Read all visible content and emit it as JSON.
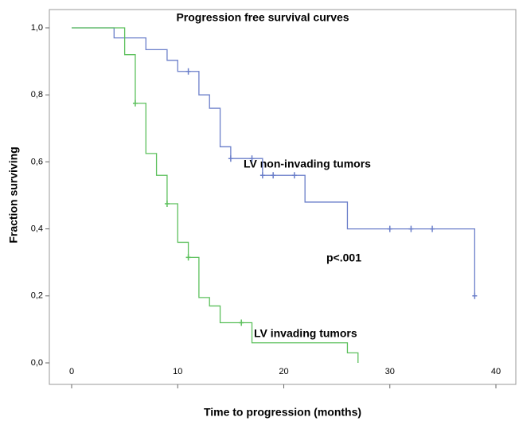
{
  "chart_data": {
    "type": "step",
    "title": "Progression free survival curves",
    "x_label": "Time to progression (months)",
    "y_label": "Fraction surviving",
    "annotation": "p<.001",
    "xlim": [
      0,
      40
    ],
    "xticks": [
      0,
      10,
      20,
      30,
      40
    ],
    "ylim": [
      0,
      1
    ],
    "yticks": [
      {
        "value": 0,
        "label": "0,0"
      },
      {
        "value": 0.2,
        "label": "0,2"
      },
      {
        "value": 0.4,
        "label": "0,4"
      },
      {
        "value": 0.6,
        "label": "0,6"
      },
      {
        "value": 0.8,
        "label": "0,8"
      },
      {
        "value": 1,
        "label": "1,0"
      }
    ],
    "series": [
      {
        "name": "LV non-invading tumors",
        "color": "#6b7fca",
        "x": [
          0,
          4,
          7,
          9,
          10,
          12,
          13,
          14,
          15,
          18,
          22,
          26,
          38
        ],
        "values": [
          1,
          0.97,
          0.935,
          0.903,
          0.87,
          0.8,
          0.76,
          0.645,
          0.61,
          0.56,
          0.48,
          0.4,
          0.2
        ],
        "censor_x": [
          11,
          15,
          17,
          18,
          19,
          21,
          30,
          32,
          34,
          38
        ],
        "censor_values": [
          0.87,
          0.61,
          0.61,
          0.56,
          0.56,
          0.56,
          0.4,
          0.4,
          0.4,
          0.2
        ]
      },
      {
        "name": "LV invading tumors",
        "color": "#5cc05c",
        "x": [
          0,
          5,
          6,
          7,
          8,
          9,
          10,
          11,
          12,
          13,
          14,
          17,
          26,
          27
        ],
        "values": [
          1,
          0.92,
          0.775,
          0.625,
          0.56,
          0.475,
          0.36,
          0.315,
          0.195,
          0.17,
          0.12,
          0.06,
          0.03,
          0
        ],
        "censor_x": [
          6,
          9,
          11,
          16
        ],
        "censor_values": [
          0.775,
          0.475,
          0.315,
          0.12
        ]
      }
    ]
  }
}
